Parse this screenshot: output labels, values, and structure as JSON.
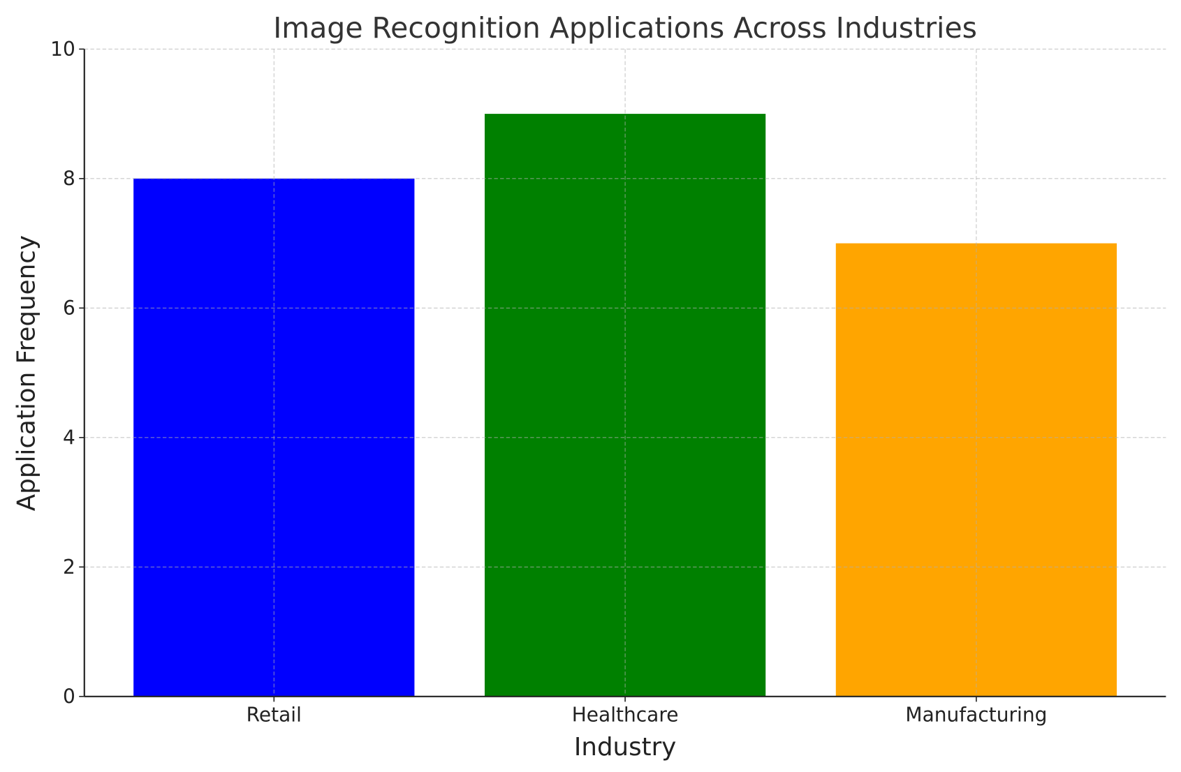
{
  "chart_data": {
    "type": "bar",
    "title": "Image Recognition Applications Across Industries",
    "xlabel": "Industry",
    "ylabel": "Application Frequency",
    "categories": [
      "Retail",
      "Healthcare",
      "Manufacturing"
    ],
    "values": [
      8,
      9,
      7
    ],
    "colors": [
      "#0000ff",
      "#008000",
      "#ffa500"
    ],
    "ylim": [
      0,
      10
    ],
    "yticks": [
      0,
      2,
      4,
      6,
      8,
      10
    ],
    "grid": true
  }
}
